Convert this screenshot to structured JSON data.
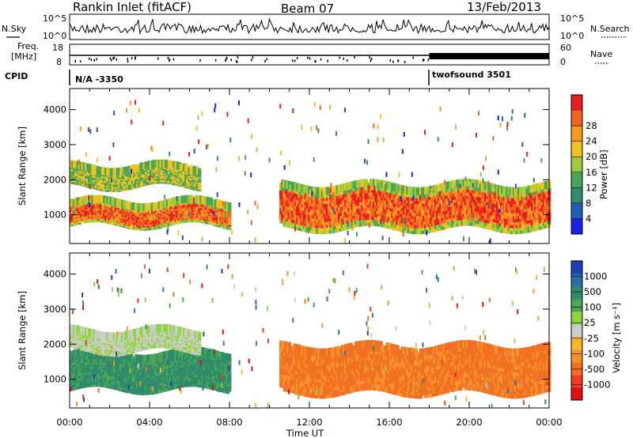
{
  "header": {
    "title": "Rankin Inlet (fitACF)",
    "beam": "Beam 07",
    "date": "13/Feb/2013"
  },
  "top_panels": {
    "nsky_label": "N.Sky",
    "nsearch_label": "N.Search",
    "nsky_ticks": [
      "10^5",
      "10^0"
    ],
    "nsearch_ticks": [
      "10^5",
      "10^0"
    ],
    "freq_label_1": "Freq.",
    "freq_label_2": "[MHz]",
    "freq_ticks": [
      "18",
      "8"
    ],
    "nave_label": "Nave",
    "nave_ticks": [
      "60",
      "0"
    ],
    "cpid_label": "CPID",
    "cpid_segments": [
      {
        "text": "N/A -3350",
        "start_hour": 0
      },
      {
        "text": "twofsound 3501",
        "start_hour": 18
      }
    ]
  },
  "chart_data": [
    {
      "type": "heatmap",
      "name": "power",
      "xlabel": "",
      "ylabel": "Slant Range [km]",
      "x_hours": [
        0,
        24
      ],
      "ylim": [
        180,
        4600
      ],
      "yticks": [
        "1000",
        "2000",
        "3000",
        "4000"
      ],
      "colorbar_label": "Power [dB]",
      "colorbar_ticks": [
        "4",
        "8",
        "12",
        "16",
        "20",
        "24",
        "28"
      ],
      "colors": [
        "#1a22e6",
        "#1f5fb5",
        "#2e8c6d",
        "#47a65a",
        "#9ccc3c",
        "#f2c21f",
        "#f59b21",
        "#f26322",
        "#e81e1e"
      ],
      "bands": [
        {
          "label": "strong F-region band",
          "from_hour": 0,
          "to_hour": 8,
          "range_km": [
            800,
            1400
          ]
        },
        {
          "label": "strong F-region band",
          "from_hour": 10.5,
          "to_hour": 24,
          "range_km": [
            700,
            1900
          ]
        },
        {
          "label": "upper band",
          "from_hour": 0,
          "to_hour": 6.5,
          "range_km": [
            1900,
            2400
          ]
        }
      ]
    },
    {
      "type": "heatmap",
      "name": "velocity",
      "xlabel": "Time UT",
      "ylabel": "Slant Range [km]",
      "x_hours": [
        0,
        24
      ],
      "ylim": [
        180,
        4600
      ],
      "yticks": [
        "1000",
        "2000",
        "3000",
        "4000"
      ],
      "xticks": [
        "00:00",
        "04:00",
        "08:00",
        "12:00",
        "16:00",
        "20:00",
        "00:00"
      ],
      "colorbar_label": "Velocity [m s⁻¹]",
      "colorbar_ticks": [
        "1000",
        "500",
        "100",
        "25",
        "-25",
        "-100",
        "-500",
        "-1000"
      ],
      "colors": [
        "#1f3fb5",
        "#2e6ba8",
        "#2e8c6d",
        "#4da653",
        "#8fd63c",
        "#cccccc",
        "#f7b52b",
        "#f5942a",
        "#f27023",
        "#ef3d1d",
        "#e01010"
      ],
      "bands": [
        {
          "label": "positive velocity band",
          "from_hour": 0,
          "to_hour": 8,
          "range_km": [
            800,
            1800
          ]
        },
        {
          "label": "negative velocity band",
          "from_hour": 10.5,
          "to_hour": 24,
          "range_km": [
            700,
            2000
          ]
        },
        {
          "label": "near-zero velocity band",
          "from_hour": 0,
          "to_hour": 6.5,
          "range_km": [
            1900,
            2400
          ]
        }
      ]
    }
  ]
}
